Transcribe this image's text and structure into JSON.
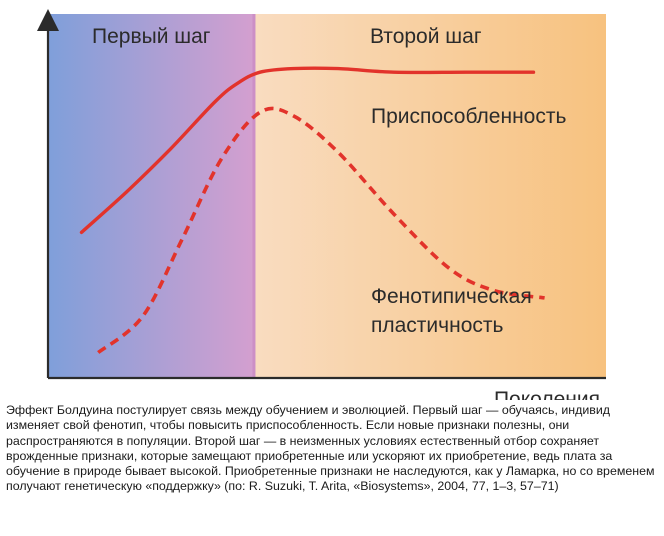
{
  "chart_data": {
    "type": "line",
    "phases": [
      {
        "name": "Первый шаг",
        "x_range": [
          0,
          0.37
        ],
        "color_from": "#7f9fda",
        "color_to": "#d49fcf"
      },
      {
        "name": "Второй шаг",
        "x_range": [
          0.37,
          1
        ],
        "color_from": "#f9dcc0",
        "color_to": "#f7c27f"
      }
    ],
    "xlabel": "Поколения",
    "ylabel": "",
    "xlim": [
      0,
      1
    ],
    "ylim": [
      0,
      1
    ],
    "grid": false,
    "series": [
      {
        "name": "Приспособленность",
        "style": "solid",
        "color": "#e2332b",
        "x": [
          0.06,
          0.14,
          0.22,
          0.3,
          0.34,
          0.38,
          0.44,
          0.52,
          0.62,
          0.75,
          0.87
        ],
        "y": [
          0.4,
          0.51,
          0.63,
          0.76,
          0.81,
          0.84,
          0.85,
          0.85,
          0.84,
          0.84,
          0.84
        ]
      },
      {
        "name": "Фенотипическая пластичность",
        "style": "dashed",
        "color": "#e2332b",
        "x": [
          0.09,
          0.17,
          0.24,
          0.31,
          0.38,
          0.44,
          0.52,
          0.62,
          0.72,
          0.8,
          0.89
        ],
        "y": [
          0.07,
          0.17,
          0.38,
          0.6,
          0.73,
          0.72,
          0.62,
          0.45,
          0.3,
          0.24,
          0.22
        ]
      }
    ]
  },
  "caption": "Эффект Болдуина постулирует связь между обучением и эволюцией. Первый шаг — обучаясь, индивид изменяет свой фенотип, чтобы повысить приспособленность. Если новые признаки полезны, они распространяются в популяции. Второй шаг — в неизменных условиях естественный отбор сохраняет врожденные признаки, которые замещают приобретенные или ускоряют их приобретение, ведь плата за обучение в природе бывает высокой. Приобретенные признаки не наследуются, как у Ламарка, но со временем получают генетическую «поддержку» (по: R. Suzuki, T. Arita, «Biosystems», 2004, 77, 1–3, 57–71)"
}
